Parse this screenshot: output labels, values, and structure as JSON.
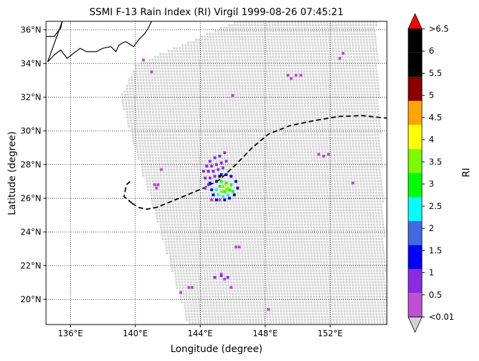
{
  "chart_data": {
    "type": "scatter",
    "title": "SSMI F-13 Rain Index (RI) Virgil 1999-08-26 07:45:21",
    "xlabel": "Longitude (degree)",
    "ylabel": "Latitude (degree)",
    "xlim": [
      134.5,
      155.5
    ],
    "ylim": [
      18.5,
      36.5
    ],
    "x_ticks": [
      136,
      140,
      144,
      148,
      152
    ],
    "x_tick_labels": [
      "136°E",
      "140°E",
      "144°E",
      "148°E",
      "152°E"
    ],
    "y_ticks": [
      20,
      22,
      24,
      26,
      28,
      30,
      32,
      34,
      36
    ],
    "y_tick_labels": [
      "20°N",
      "22°N",
      "24°N",
      "26°N",
      "28°N",
      "30°N",
      "32°N",
      "34°N",
      "36°N"
    ],
    "grid": "dotted",
    "swath": {
      "color": "#d3d3d3",
      "corners_lonlat": [
        [
          140.0,
          34.0
        ],
        [
          146.0,
          36.5
        ],
        [
          154.8,
          36.5
        ],
        [
          155.5,
          18.5
        ],
        [
          143.2,
          18.5
        ],
        [
          139.0,
          32.0
        ]
      ],
      "description_color": "light gray"
    },
    "coastline": {
      "color": "#000000",
      "points": [
        [
          134.5,
          35.6
        ],
        [
          135.0,
          35.6
        ],
        [
          135.4,
          36.1
        ],
        [
          135.5,
          36.5
        ],
        [
          134.6,
          34.1
        ],
        [
          135.0,
          34.5
        ],
        [
          135.4,
          34.8
        ],
        [
          135.8,
          34.3
        ],
        [
          136.2,
          34.6
        ],
        [
          136.6,
          34.9
        ],
        [
          137.0,
          34.7
        ],
        [
          137.6,
          34.7
        ],
        [
          138.0,
          34.9
        ],
        [
          138.5,
          35.0
        ],
        [
          138.8,
          34.7
        ],
        [
          139.0,
          35.1
        ],
        [
          139.4,
          35.3
        ],
        [
          139.9,
          35.0
        ],
        [
          140.2,
          35.4
        ],
        [
          140.6,
          35.8
        ],
        [
          140.8,
          36.1
        ],
        [
          141.0,
          36.5
        ]
      ]
    },
    "track": {
      "style": "dashed",
      "color": "#000000",
      "points": [
        [
          139.8,
          25.7
        ],
        [
          140.2,
          25.45
        ],
        [
          140.7,
          25.35
        ],
        [
          141.3,
          25.45
        ],
        [
          142.2,
          25.8
        ],
        [
          143.2,
          26.2
        ],
        [
          144.2,
          26.6
        ],
        [
          145.2,
          27.1
        ],
        [
          146.2,
          28.0
        ],
        [
          147.2,
          29.0
        ],
        [
          148.2,
          29.8
        ],
        [
          149.5,
          30.3
        ],
        [
          151.0,
          30.6
        ],
        [
          152.5,
          30.85
        ],
        [
          154.0,
          30.9
        ],
        [
          155.5,
          30.75
        ]
      ],
      "start_hook": [
        [
          139.8,
          25.7
        ],
        [
          139.3,
          26.1
        ],
        [
          139.45,
          26.8
        ],
        [
          139.7,
          27.0
        ]
      ]
    },
    "series": [
      {
        "ri": 0.5,
        "color": "#c042d6",
        "points": [
          [
            140.5,
            34.2
          ],
          [
            141.0,
            33.5
          ],
          [
            149.4,
            33.3
          ],
          [
            149.6,
            33.1
          ],
          [
            149.9,
            33.3
          ],
          [
            150.2,
            33.3
          ],
          [
            152.6,
            34.3
          ],
          [
            152.8,
            34.6
          ],
          [
            146.0,
            32.1
          ],
          [
            151.3,
            28.6
          ],
          [
            151.6,
            28.5
          ],
          [
            151.9,
            28.6
          ],
          [
            141.6,
            27.7
          ],
          [
            141.4,
            26.8
          ],
          [
            141.2,
            26.8
          ],
          [
            141.3,
            26.6
          ],
          [
            153.4,
            26.9
          ],
          [
            146.2,
            23.1
          ],
          [
            146.4,
            23.1
          ],
          [
            145.3,
            21.5
          ],
          [
            145.5,
            21.2
          ],
          [
            143.3,
            20.7
          ],
          [
            143.5,
            20.7
          ],
          [
            142.8,
            20.4
          ],
          [
            145.9,
            20.7
          ],
          [
            148.2,
            19.4
          ],
          [
            144.7,
            25.9
          ],
          [
            145.2,
            25.9
          ]
        ]
      },
      {
        "ri": 1.0,
        "color": "#8a2be2",
        "points": [
          [
            144.6,
            28.2
          ],
          [
            144.9,
            28.4
          ],
          [
            145.2,
            28.5
          ],
          [
            145.5,
            28.7
          ],
          [
            144.4,
            27.9
          ],
          [
            144.7,
            27.9
          ],
          [
            145.0,
            28.0
          ],
          [
            145.3,
            28.1
          ],
          [
            145.6,
            28.2
          ],
          [
            144.2,
            27.6
          ],
          [
            144.5,
            27.6
          ],
          [
            144.8,
            27.6
          ],
          [
            145.1,
            27.7
          ],
          [
            145.4,
            27.8
          ],
          [
            144.3,
            27.2
          ],
          [
            144.6,
            27.2
          ],
          [
            144.9,
            27.3
          ],
          [
            144.5,
            26.8
          ],
          [
            144.3,
            26.6
          ],
          [
            145.3,
            21.4
          ],
          [
            145.7,
            21.3
          ],
          [
            144.9,
            21.3
          ]
        ]
      },
      {
        "ri": 1.5,
        "color": "#0000ff",
        "points": [
          [
            145.3,
            27.4
          ],
          [
            145.6,
            27.4
          ],
          [
            145.9,
            27.3
          ],
          [
            145.0,
            27.0
          ],
          [
            144.7,
            26.5
          ],
          [
            144.8,
            26.2
          ],
          [
            145.0,
            25.9
          ],
          [
            145.5,
            25.9
          ],
          [
            145.8,
            26.0
          ],
          [
            146.1,
            26.2
          ],
          [
            146.3,
            26.6
          ],
          [
            146.2,
            27.0
          ],
          [
            144.6,
            26.9
          ]
        ]
      },
      {
        "ri": 2.0,
        "color": "#00ffff",
        "points": [
          [
            145.0,
            26.5
          ],
          [
            145.1,
            26.2
          ],
          [
            145.4,
            26.1
          ],
          [
            145.7,
            26.2
          ]
        ]
      },
      {
        "ri": 2.5,
        "color": "#00ff00",
        "points": [
          [
            145.3,
            27.0
          ],
          [
            145.6,
            26.9
          ],
          [
            145.9,
            26.8
          ],
          [
            145.2,
            26.7
          ],
          [
            145.8,
            26.5
          ],
          [
            146.0,
            26.4
          ],
          [
            145.5,
            26.4
          ]
        ]
      },
      {
        "ri": 3.0,
        "color": "#7cfc00",
        "points": [
          [
            145.4,
            26.7
          ],
          [
            145.7,
            26.6
          ],
          [
            145.3,
            26.4
          ],
          [
            145.6,
            26.5
          ]
        ]
      },
      {
        "ri": 3.5,
        "color": "#ffff00",
        "points": [
          [
            145.6,
            26.7
          ]
        ]
      },
      {
        "ri": 5.5,
        "color": "#000000",
        "points": [
          [
            145.2,
            27.3
          ]
        ]
      }
    ],
    "colorbar": {
      "label": "RI",
      "tick_labels": [
        "<0.01",
        "0.5",
        "1",
        "1.5",
        "2",
        "2.5",
        "3",
        "3.5",
        "4",
        "4.5",
        "5",
        "5.5",
        "6",
        ">6.5"
      ],
      "colors": [
        "#c04fd6",
        "#8a2be2",
        "#0000ff",
        "#4169e1",
        "#00ffff",
        "#00ff00",
        "#7cfc00",
        "#ffff00",
        "#ffa500",
        "#8b0000",
        "#000000",
        "#000000"
      ],
      "under_color": "#d3d3d3",
      "over_color": "#ff0000"
    }
  }
}
